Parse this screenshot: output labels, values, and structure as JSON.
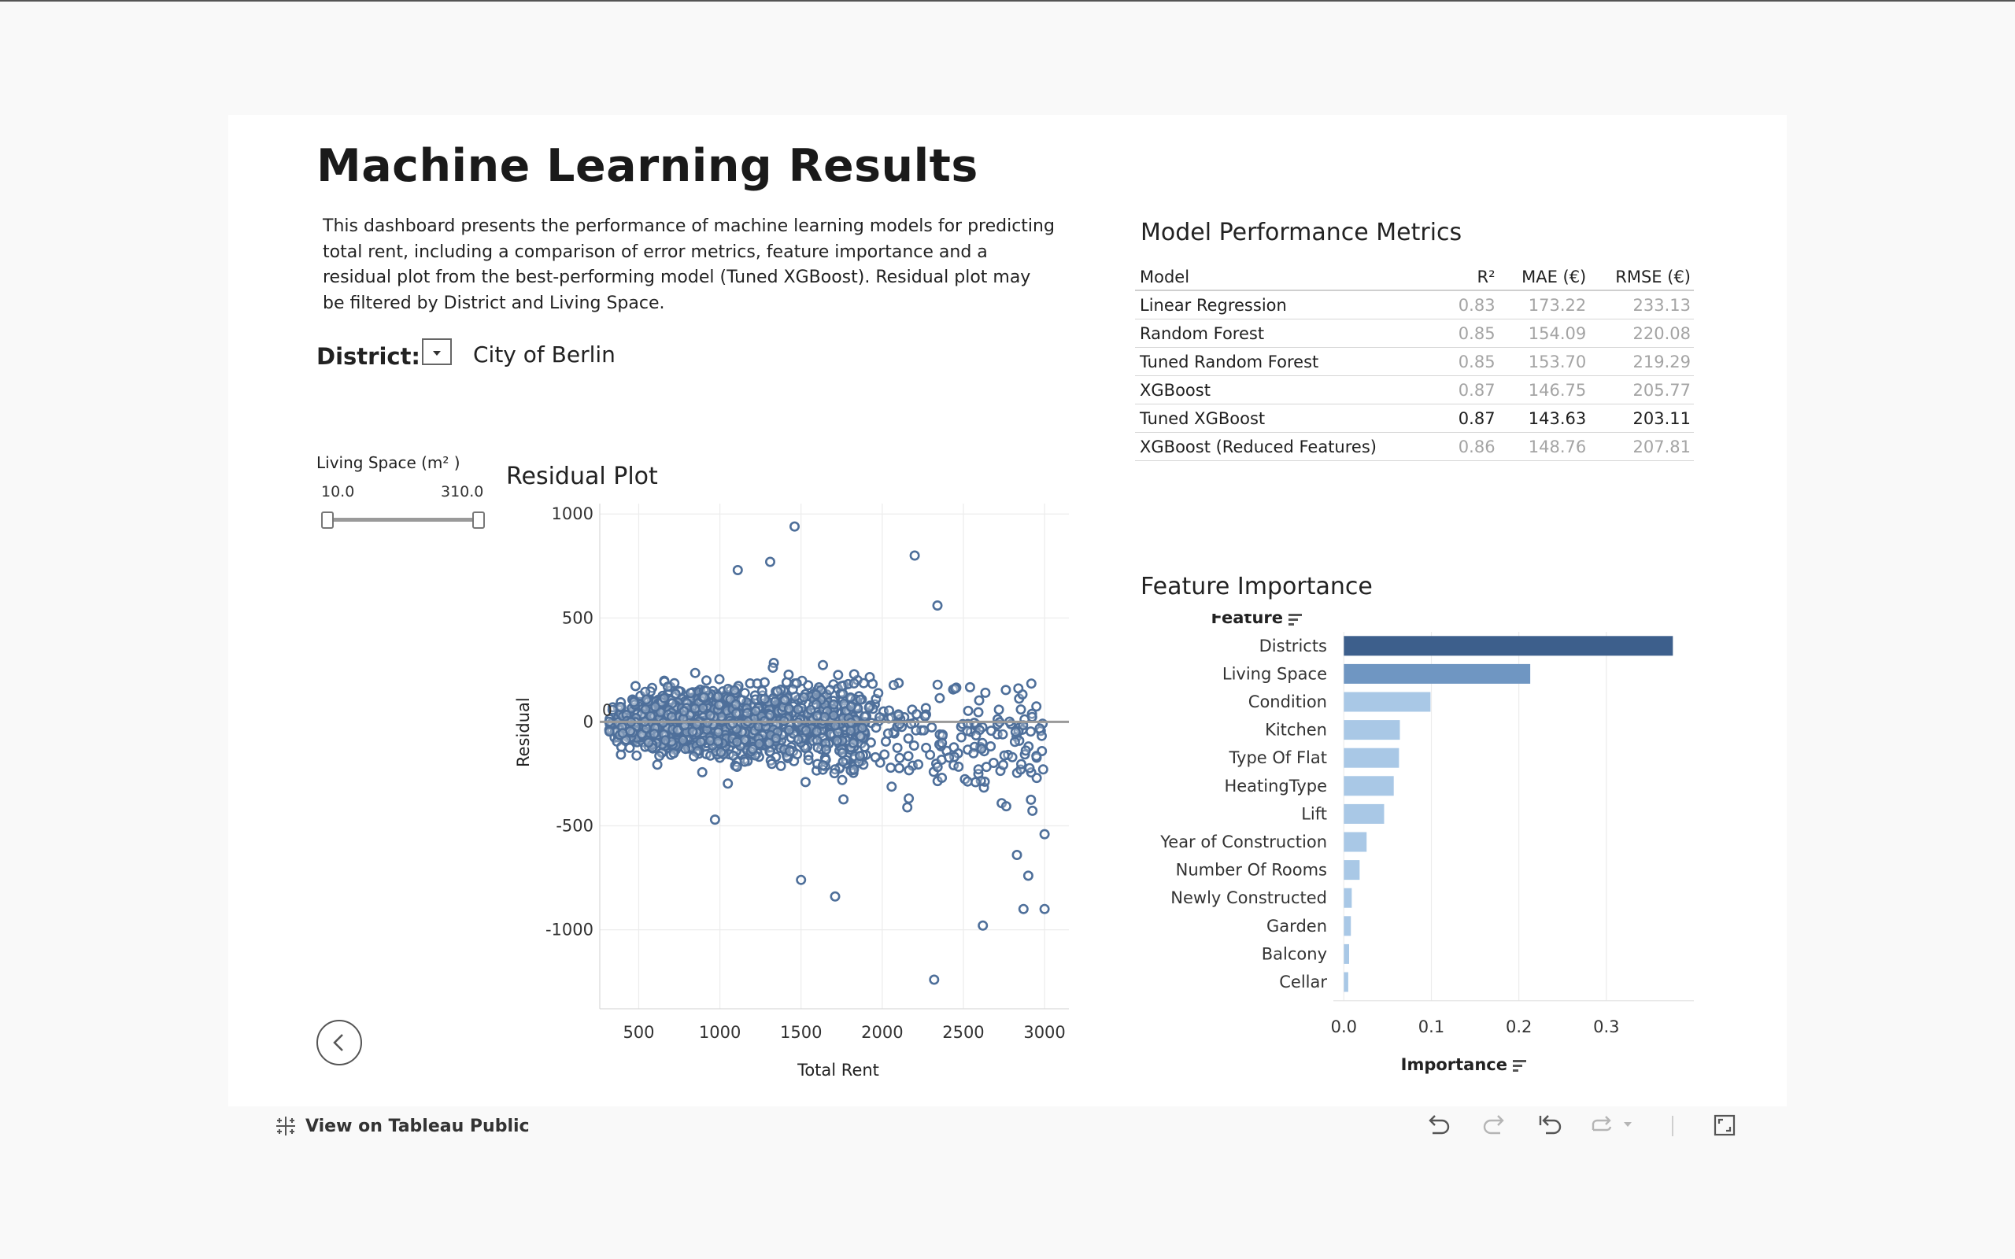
{
  "title": "Machine Learning Results",
  "description": "This dashboard presents the performance of machine learning models for predicting total rent, including a comparison of error metrics, feature importance and a residual plot from the best-performing model (Tuned XGBoost). Residual plot may be filtered by District and Living Space.",
  "district_filter": {
    "label": "District:",
    "value": "City of Berlin"
  },
  "living_space_filter": {
    "label": "Living Space (m² )",
    "min": "10.0",
    "max": "310.0"
  },
  "metrics_table": {
    "title": "Model Performance Metrics",
    "columns": [
      "Model",
      "R²",
      "MAE (€)",
      "RMSE (€)"
    ],
    "rows": [
      {
        "model": "Linear Regression",
        "r2": "0.83",
        "mae": "173.22",
        "rmse": "233.13"
      },
      {
        "model": "Random Forest",
        "r2": "0.85",
        "mae": "154.09",
        "rmse": "220.08"
      },
      {
        "model": "Tuned Random Forest",
        "r2": "0.85",
        "mae": "153.70",
        "rmse": "219.29"
      },
      {
        "model": "XGBoost",
        "r2": "0.87",
        "mae": "146.75",
        "rmse": "205.77"
      },
      {
        "model": "Tuned XGBoost",
        "r2": "0.87",
        "mae": "143.63",
        "rmse": "203.11"
      },
      {
        "model": "XGBoost (Reduced Features)",
        "r2": "0.86",
        "mae": "148.76",
        "rmse": "207.81"
      }
    ],
    "highlight_model": "Tuned XGBoost"
  },
  "footer": {
    "tableau_link": "View on Tableau Public"
  },
  "icons": {
    "back": "back-arrow-icon",
    "undo": "undo-icon",
    "redo": "redo-icon",
    "revert": "revert-icon",
    "refresh": "refresh-icon",
    "fullscreen": "fullscreen-icon",
    "tableau": "tableau-logo-icon"
  },
  "colors": {
    "accent_dark": "#3d5f8c",
    "accent_mid": "#6f96c2",
    "accent_light": "#a9c8e6",
    "scatter": "#4e6f9a",
    "zero_line": "#9a9a9a"
  },
  "chart_data": [
    {
      "type": "scatter",
      "title": "Residual Plot",
      "xlabel": "Total Rent",
      "ylabel": "Residual",
      "xlim": [
        260,
        3150
      ],
      "ylim": [
        -1380,
        1050
      ],
      "xticks": [
        500,
        1000,
        1500,
        2000,
        2500,
        3000
      ],
      "yticks": [
        1000,
        500,
        0,
        -500,
        -1000
      ],
      "reference_line": {
        "y": 0,
        "label": "0"
      },
      "notable_points": [
        {
          "x": 1460,
          "y": 940
        },
        {
          "x": 2200,
          "y": 800
        },
        {
          "x": 1310,
          "y": 770
        },
        {
          "x": 1110,
          "y": 730
        },
        {
          "x": 2340,
          "y": 560
        },
        {
          "x": 2620,
          "y": -980
        },
        {
          "x": 2320,
          "y": -1240
        },
        {
          "x": 1710,
          "y": -840
        },
        {
          "x": 1500,
          "y": -760
        },
        {
          "x": 3000,
          "y": -900
        },
        {
          "x": 2870,
          "y": -900
        },
        {
          "x": 2900,
          "y": -740
        },
        {
          "x": 2830,
          "y": -640
        },
        {
          "x": 3000,
          "y": -540
        },
        {
          "x": 970,
          "y": -470
        }
      ],
      "n_points_approx": 1700,
      "grid": true
    },
    {
      "type": "bar",
      "orientation": "horizontal",
      "title": "Feature Importance",
      "xlabel": "Importance",
      "ylabel": "Feature",
      "categories": [
        "Districts",
        "Living Space",
        "Condition",
        "Kitchen",
        "Type Of Flat",
        "HeatingType",
        "Lift",
        "Year of Construction",
        "Number Of Rooms",
        "Newly Constructed",
        "Garden",
        "Balcony",
        "Cellar"
      ],
      "values": [
        0.376,
        0.213,
        0.099,
        0.064,
        0.063,
        0.057,
        0.046,
        0.026,
        0.018,
        0.009,
        0.008,
        0.006,
        0.005
      ],
      "xlim": [
        -0.012,
        0.4
      ],
      "xticks": [
        "0.0",
        "0.1",
        "0.2",
        "0.3"
      ],
      "grid": true
    }
  ]
}
